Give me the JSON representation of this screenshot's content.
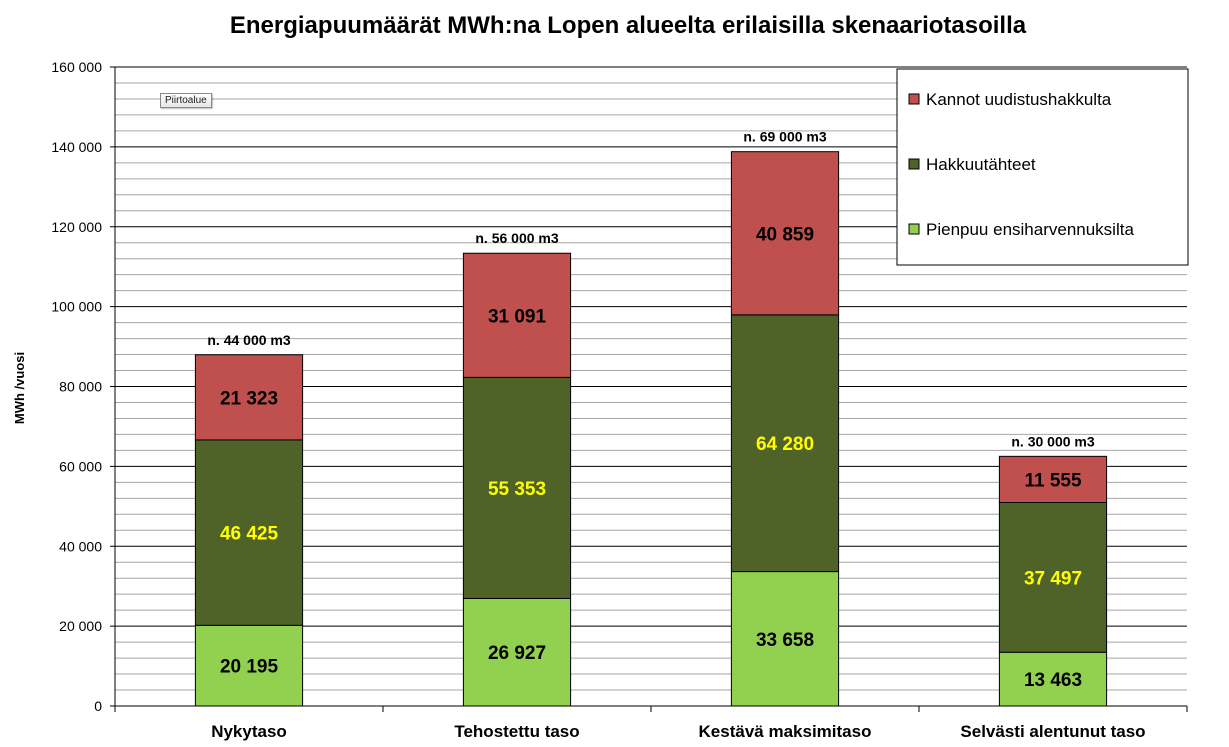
{
  "chart_data": {
    "type": "bar",
    "stacked": true,
    "title": "Energiapuumäärät MWh:na  Lopen alueelta erilaisilla skenaariotasoilla",
    "ylabel": "MWh /vuosi",
    "ylim": [
      0,
      160000
    ],
    "yticks": [
      "0",
      "20 000",
      "40 000",
      "60 000",
      "80 000",
      "100 000",
      "120 000",
      "140 000",
      "160 000"
    ],
    "ytick_values": [
      0,
      20000,
      40000,
      60000,
      80000,
      100000,
      120000,
      140000,
      160000
    ],
    "grid": true,
    "legend_position": "top-right",
    "categories": [
      "Nykytaso",
      "Tehostettu taso",
      "Kestävä maksimitaso",
      "Selvästi alentunut taso"
    ],
    "series": [
      {
        "name": "Pienpuu ensiharvennuksilta",
        "values": [
          20195,
          26927,
          33658,
          13463
        ],
        "labels": [
          "20 195",
          "26 927",
          "33 658",
          "13 463"
        ],
        "color": "#92d050",
        "label_color": "#000000"
      },
      {
        "name": "Hakkuutähteet",
        "values": [
          46425,
          55353,
          64280,
          37497
        ],
        "labels": [
          "46 425",
          "55 353",
          "64 280",
          "37 497"
        ],
        "color": "#4f6228",
        "label_color": "#ffff00"
      },
      {
        "name": "Kannot uudistushakkulta",
        "values": [
          21323,
          31091,
          40859,
          11555
        ],
        "labels": [
          "21 323",
          "31 091",
          "40 859",
          "11 555"
        ],
        "color": "#c0504d",
        "label_color": "#000000"
      }
    ],
    "annotations": [
      "n. 44 000 m3",
      "n. 56 000 m3",
      "n. 69 000 m3",
      "n. 30 000 m3"
    ],
    "legend_order": [
      "Kannot uudistushakkulta",
      "Hakkuutähteet",
      "Pienpuu ensiharvennuksilta"
    ]
  },
  "plot_area_tag": "Piirtoalue"
}
